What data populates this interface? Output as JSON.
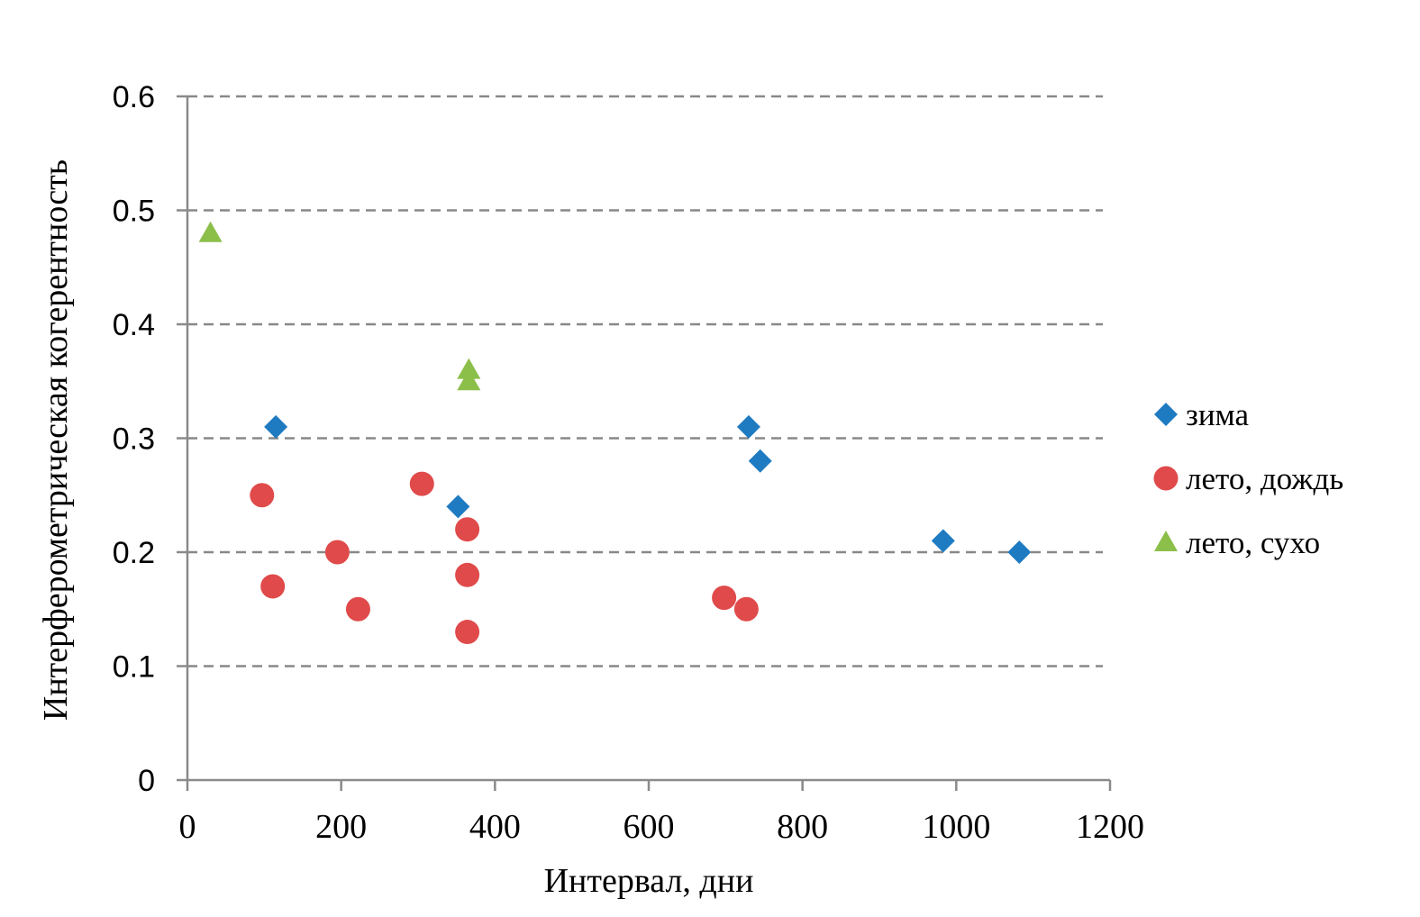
{
  "chart_data": {
    "type": "scatter",
    "title": "",
    "xlabel": "Интервал, дни",
    "ylabel": "Интерферометрическая когерентность",
    "xlim": [
      0,
      1200
    ],
    "ylim": [
      0,
      0.6
    ],
    "x_ticks": [
      "0",
      "200",
      "400",
      "600",
      "800",
      "1000",
      "1200"
    ],
    "y_ticks": [
      "0",
      "0.1",
      "0.2",
      "0.3",
      "0.4",
      "0.5",
      "0.6"
    ],
    "grid": "horizontal dashed",
    "legend_position": "right",
    "series": [
      {
        "name": "зима",
        "marker": "diamond",
        "color": "#1f7bc1",
        "points": [
          {
            "x": 115,
            "y": 0.31
          },
          {
            "x": 352,
            "y": 0.24
          },
          {
            "x": 730,
            "y": 0.31
          },
          {
            "x": 745,
            "y": 0.28
          },
          {
            "x": 983,
            "y": 0.21
          },
          {
            "x": 1082,
            "y": 0.2
          }
        ]
      },
      {
        "name": "лето, дождь",
        "marker": "circle",
        "color": "#e04a4a",
        "points": [
          {
            "x": 97,
            "y": 0.25
          },
          {
            "x": 111,
            "y": 0.17
          },
          {
            "x": 195,
            "y": 0.2
          },
          {
            "x": 222,
            "y": 0.15
          },
          {
            "x": 305,
            "y": 0.26
          },
          {
            "x": 364,
            "y": 0.22
          },
          {
            "x": 364,
            "y": 0.18
          },
          {
            "x": 364,
            "y": 0.13
          },
          {
            "x": 698,
            "y": 0.16
          },
          {
            "x": 727,
            "y": 0.15
          }
        ]
      },
      {
        "name": "лето, сухо",
        "marker": "triangle",
        "color": "#8cbf4a",
        "points": [
          {
            "x": 30,
            "y": 0.48
          },
          {
            "x": 366,
            "y": 0.36
          },
          {
            "x": 366,
            "y": 0.35
          }
        ]
      }
    ]
  }
}
